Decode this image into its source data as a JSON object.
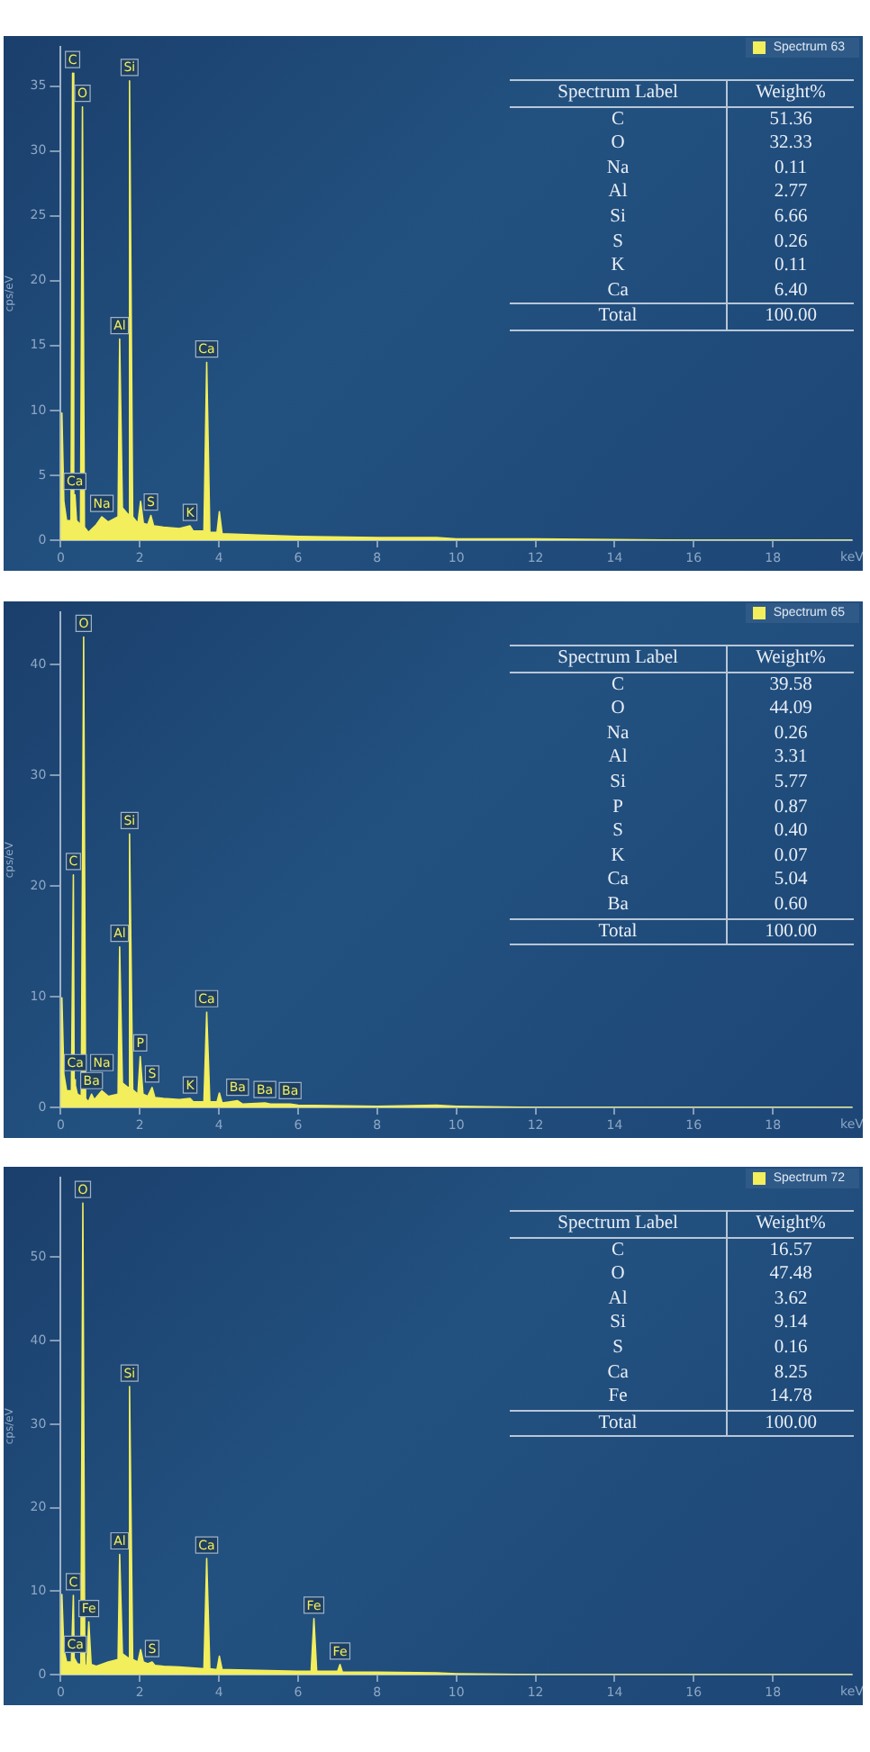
{
  "chart_data": [
    {
      "type": "area",
      "ylabel": "cps/eV",
      "xlabel": "keV",
      "xlim": [
        0,
        20
      ],
      "xticks": [
        0,
        2,
        4,
        6,
        8,
        10,
        12,
        14,
        16,
        18
      ],
      "ylim": [
        0,
        38
      ],
      "yticks": [
        0,
        5,
        10,
        15,
        20,
        25,
        30,
        35
      ],
      "grid": false,
      "legend": "top right",
      "series": [
        {
          "name": "Spectrum 63",
          "color": "#f2ee5c",
          "x": [
            0,
            0.03,
            0.08,
            0.15,
            0.26,
            0.3,
            0.33,
            0.36,
            0.4,
            0.5,
            0.55,
            0.6,
            0.7,
            0.9,
            1.04,
            1.2,
            1.45,
            1.49,
            1.56,
            1.7,
            1.74,
            1.82,
            1.95,
            2.02,
            2.09,
            2.2,
            2.28,
            2.35,
            2.6,
            3.0,
            3.27,
            3.35,
            3.62,
            3.69,
            3.77,
            3.95,
            4.01,
            4.08,
            5,
            6,
            8,
            9.5,
            10,
            12,
            16,
            20
          ],
          "values": [
            0,
            9.8,
            3,
            1.5,
            1.5,
            36,
            2.5,
            3.5,
            1.5,
            1.2,
            33.4,
            1,
            0.6,
            1.2,
            1.8,
            1.4,
            1.8,
            15.5,
            2.5,
            2,
            35.4,
            1.8,
            1.3,
            3,
            1.3,
            1.2,
            1.9,
            1.1,
            1,
            0.9,
            1.1,
            0.7,
            0.7,
            13.7,
            0.6,
            0.6,
            2.2,
            0.5,
            0.4,
            0.3,
            0.2,
            0.2,
            0.1,
            0.1,
            0,
            0
          ]
        }
      ],
      "annotations": [
        {
          "text": "C",
          "x": 0.3,
          "y": 36
        },
        {
          "text": "O",
          "x": 0.55,
          "y": 33.4
        },
        {
          "text": "Ca",
          "x": 0.36,
          "y": 3.5
        },
        {
          "text": "Na",
          "x": 1.04,
          "y": 1.8
        },
        {
          "text": "Al",
          "x": 1.49,
          "y": 15.5
        },
        {
          "text": "Si",
          "x": 1.74,
          "y": 35.4
        },
        {
          "text": "S",
          "x": 2.28,
          "y": 1.9
        },
        {
          "text": "K",
          "x": 3.27,
          "y": 1.1
        },
        {
          "text": "Ca",
          "x": 3.69,
          "y": 13.7
        },
        "Spectrum Label",
        "Weight%",
        "C",
        "51.36",
        "O",
        "32.33",
        "Na",
        "0.11",
        "Al",
        "2.77",
        "Si",
        "6.66",
        "S",
        "0.26",
        "K",
        "0.11",
        "Ca",
        "6.40",
        "Total",
        "100.00"
      ]
    },
    {
      "type": "area",
      "ylabel": "cps/eV",
      "xlabel": "keV",
      "xlim": [
        0,
        20
      ],
      "xticks": [
        0,
        2,
        4,
        6,
        8,
        10,
        12,
        14,
        16,
        18
      ],
      "ylim": [
        0,
        44.7
      ],
      "yticks": [
        0,
        10,
        20,
        30,
        40
      ],
      "grid": false,
      "legend": "top right",
      "series": [
        {
          "name": "Spectrum 65",
          "color": "#f2ee5c",
          "x": [
            0,
            0.03,
            0.08,
            0.15,
            0.27,
            0.32,
            0.34,
            0.37,
            0.42,
            0.52,
            0.58,
            0.63,
            0.7,
            0.78,
            0.85,
            1.04,
            1.2,
            1.45,
            1.49,
            1.56,
            1.7,
            1.74,
            1.82,
            1.95,
            2.01,
            2.08,
            2.2,
            2.31,
            2.38,
            2.6,
            3.0,
            3.27,
            3.35,
            3.62,
            3.69,
            3.77,
            3.95,
            4.01,
            4.08,
            4.47,
            4.6,
            5.16,
            5.3,
            5.8,
            6,
            8,
            9.5,
            10,
            12,
            16,
            20
          ],
          "values": [
            0,
            9.9,
            3,
            1.5,
            1.5,
            21,
            2.5,
            2,
            1.2,
            1,
            42.5,
            0.8,
            0.5,
            1.2,
            0.7,
            1.5,
            1,
            1.2,
            14.5,
            2.2,
            1.8,
            24.7,
            1.6,
            1.2,
            4.6,
            1.2,
            1,
            1.8,
            0.9,
            0.8,
            0.7,
            0.8,
            0.5,
            0.5,
            8.6,
            0.5,
            0.5,
            1.3,
            0.4,
            0.6,
            0.3,
            0.4,
            0.3,
            0.3,
            0.2,
            0.1,
            0.2,
            0.1,
            0,
            0,
            0
          ]
        }
      ],
      "annotations": [
        {
          "text": "O",
          "x": 0.58,
          "y": 42.5
        },
        {
          "text": "C",
          "x": 0.32,
          "y": 21
        },
        {
          "text": "Ca",
          "x": 0.37,
          "y": 2
        },
        {
          "text": "Ba",
          "x": 0.78,
          "y": 1.2
        },
        {
          "text": "Na",
          "x": 1.04,
          "y": 1.5
        },
        {
          "text": "Al",
          "x": 1.49,
          "y": 14.5
        },
        {
          "text": "Si",
          "x": 1.74,
          "y": 24.7
        },
        {
          "text": "P",
          "x": 2.01,
          "y": 4.6
        },
        {
          "text": "S",
          "x": 2.31,
          "y": 1.8
        },
        {
          "text": "K",
          "x": 3.27,
          "y": 0.8
        },
        {
          "text": "Ca",
          "x": 3.69,
          "y": 8.6
        },
        {
          "text": "Ba",
          "x": 4.47,
          "y": 0.6
        },
        {
          "text": "Ba",
          "x": 5.16,
          "y": 0.4
        },
        {
          "text": "Ba",
          "x": 5.8,
          "y": 0.3
        },
        "Spectrum Label",
        "Weight%",
        "C",
        "39.58",
        "O",
        "44.09",
        "Na",
        "0.26",
        "Al",
        "3.31",
        "Si",
        "5.77",
        "P",
        "0.87",
        "S",
        "0.40",
        "K",
        "0.07",
        "Ca",
        "5.04",
        "Ba",
        "0.60",
        "Total",
        "100.00"
      ]
    },
    {
      "type": "area",
      "ylabel": "cps/eV",
      "xlabel": "keV",
      "xlim": [
        0,
        20
      ],
      "xticks": [
        0,
        2,
        4,
        6,
        8,
        10,
        12,
        14,
        16,
        18
      ],
      "ylim": [
        0,
        59.5
      ],
      "yticks": [
        0,
        10,
        20,
        30,
        40,
        50
      ],
      "grid": false,
      "legend": "top right",
      "series": [
        {
          "name": "Spectrum 72",
          "color": "#f2ee5c",
          "x": [
            0,
            0.03,
            0.08,
            0.15,
            0.27,
            0.32,
            0.34,
            0.37,
            0.42,
            0.51,
            0.56,
            0.61,
            0.66,
            0.71,
            0.77,
            0.9,
            1.2,
            1.45,
            1.49,
            1.56,
            1.7,
            1.74,
            1.82,
            1.95,
            2.02,
            2.09,
            2.2,
            2.31,
            2.38,
            2.6,
            3.0,
            3.62,
            3.69,
            3.77,
            3.95,
            4.01,
            4.08,
            5,
            6,
            6.33,
            6.4,
            6.47,
            6.8,
            7.0,
            7.06,
            7.12,
            8,
            9.5,
            10,
            12,
            16,
            20
          ],
          "values": [
            0,
            9.6,
            3,
            1.5,
            1.5,
            9.5,
            2,
            2,
            1.3,
            1.2,
            56.5,
            1.2,
            1,
            6.3,
            1.2,
            1,
            1.5,
            1.8,
            14.4,
            2.5,
            2,
            34.5,
            1.8,
            1.5,
            3,
            1.5,
            1.3,
            1.5,
            1.1,
            1,
            0.9,
            0.7,
            13.9,
            0.7,
            0.6,
            2.2,
            0.6,
            0.5,
            0.4,
            0.4,
            6.7,
            0.4,
            0.4,
            0.4,
            1.2,
            0.3,
            0.3,
            0.2,
            0.1,
            0,
            0,
            0
          ]
        }
      ],
      "annotations": [
        {
          "text": "O",
          "x": 0.56,
          "y": 56.5
        },
        {
          "text": "C",
          "x": 0.32,
          "y": 9.5
        },
        {
          "text": "Ca",
          "x": 0.37,
          "y": 2
        },
        {
          "text": "Fe",
          "x": 0.71,
          "y": 6.3
        },
        {
          "text": "Al",
          "x": 1.49,
          "y": 14.4
        },
        {
          "text": "Si",
          "x": 1.74,
          "y": 34.5
        },
        {
          "text": "S",
          "x": 2.31,
          "y": 1.5
        },
        {
          "text": "Ca",
          "x": 3.69,
          "y": 13.9
        },
        {
          "text": "Fe",
          "x": 6.4,
          "y": 6.7
        },
        {
          "text": "Fe",
          "x": 7.06,
          "y": 1.2
        },
        "Spectrum Label",
        "Weight%",
        "C",
        "16.57",
        "O",
        "47.48",
        "Al",
        "3.62",
        "Si",
        "9.14",
        "S",
        "0.16",
        "Ca",
        "8.25",
        "Fe",
        "14.78",
        "Total",
        "100.00"
      ]
    }
  ]
}
